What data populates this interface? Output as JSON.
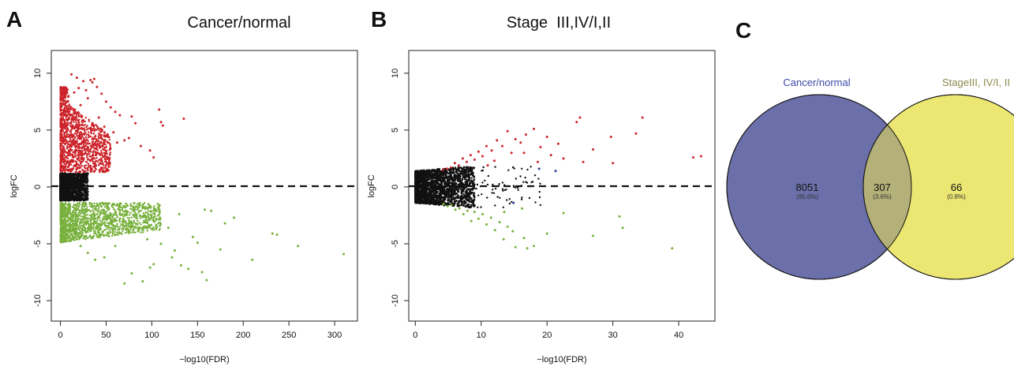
{
  "panels": {
    "a": {
      "letter": "A",
      "title": "Cancer/normal"
    },
    "b": {
      "letter": "B",
      "title": "Stage  III,IV/I,II"
    },
    "c": {
      "letter": "C"
    }
  },
  "colors": {
    "up": "#cc2229",
    "down": "#77b03b",
    "ns": "#111111",
    "extra_blue": "#2a3f9b",
    "venn_left": "#6b70aa",
    "venn_right": "#ece672",
    "venn_overlap": "#b3b079",
    "venn_left_label": "#3b4aa6",
    "venn_right_label": "#8a8a4c"
  },
  "chart_data": [
    {
      "type": "scatter",
      "title": "Cancer/normal",
      "xlabel": "−log10(FDR)",
      "ylabel": "logFC",
      "xlim": [
        -10,
        325
      ],
      "ylim": [
        -11.8,
        12
      ],
      "xticks": [
        "0",
        "50",
        "100",
        "150",
        "200",
        "250",
        "300"
      ],
      "xtick_values": [
        0,
        50,
        100,
        150,
        200,
        250,
        300
      ],
      "yticks": [
        "-10",
        "-5",
        "0",
        "5",
        "10"
      ],
      "ytick_values": [
        -10,
        -5,
        0,
        5,
        10
      ],
      "threshold_line_y": 0,
      "grid": false,
      "series": [
        {
          "color": "up",
          "values": [
            [
              12,
              9.9
            ],
            [
              18,
              9.6
            ],
            [
              25,
              9.3
            ],
            [
              33,
              9.4
            ],
            [
              37,
              9.5
            ],
            [
              40,
              8.8
            ],
            [
              35,
              9.2
            ],
            [
              20,
              8.7
            ],
            [
              28,
              8.5
            ],
            [
              45,
              8.2
            ],
            [
              50,
              7.5
            ],
            [
              55,
              7.0
            ],
            [
              65,
              6.3
            ],
            [
              78,
              6.2
            ],
            [
              60,
              6.6
            ],
            [
              108,
              6.8
            ],
            [
              110,
              5.7
            ],
            [
              112,
              5.4
            ],
            [
              135,
              6.0
            ],
            [
              82,
              5.6
            ],
            [
              98,
              3.2
            ],
            [
              102,
              2.6
            ],
            [
              70,
              4.1
            ],
            [
              58,
              4.8
            ],
            [
              48,
              5.3
            ],
            [
              42,
              6.1
            ],
            [
              75,
              4.3
            ],
            [
              88,
              3.6
            ],
            [
              62,
              3.9
            ],
            [
              52,
              4.4
            ],
            [
              30,
              7.8
            ],
            [
              22,
              7.2
            ],
            [
              15,
              8.3
            ],
            [
              8,
              7.5
            ],
            [
              8,
              3.0
            ],
            [
              8,
              5.0
            ],
            [
              9,
              6.0
            ],
            [
              10,
              4.0
            ],
            [
              10,
              2.0
            ]
          ]
        },
        {
          "color": "down",
          "values": [
            [
              70,
              -8.5
            ],
            [
              90,
              -8.3
            ],
            [
              78,
              -7.6
            ],
            [
              98,
              -7.1
            ],
            [
              102,
              -6.8
            ],
            [
              140,
              -7.2
            ],
            [
              160,
              -8.2
            ],
            [
              155,
              -7.5
            ],
            [
              132,
              -6.9
            ],
            [
              122,
              -6.2
            ],
            [
              210,
              -6.4
            ],
            [
              260,
              -5.2
            ],
            [
              310,
              -5.9
            ],
            [
              232,
              -4.1
            ],
            [
              237,
              -4.2
            ],
            [
              190,
              -2.7
            ],
            [
              165,
              -2.1
            ],
            [
              158,
              -2.0
            ],
            [
              130,
              -2.4
            ],
            [
              118,
              -3.6
            ],
            [
              145,
              -4.4
            ],
            [
              175,
              -5.5
            ],
            [
              110,
              -5.0
            ],
            [
              95,
              -4.6
            ],
            [
              85,
              -3.9
            ],
            [
              60,
              -5.2
            ],
            [
              48,
              -6.2
            ],
            [
              38,
              -6.4
            ],
            [
              30,
              -5.8
            ],
            [
              22,
              -5.2
            ],
            [
              105,
              -2.8
            ],
            [
              125,
              -5.6
            ],
            [
              150,
              -4.9
            ],
            [
              180,
              -3.2
            ],
            [
              68,
              -3.3
            ],
            [
              52,
              -4.0
            ],
            [
              40,
              -3.5
            ],
            [
              28,
              -4.4
            ],
            [
              17,
              -3.7
            ],
            [
              12,
              -4.2
            ],
            [
              8,
              -2.0
            ],
            [
              8,
              -3.0
            ],
            [
              9,
              -1.8
            ]
          ]
        }
      ]
    },
    {
      "type": "scatter",
      "title": "Stage  III,IV/I,II",
      "xlabel": "−log10(FDR)",
      "ylabel": "logFC",
      "xlim": [
        -1,
        45.5
      ],
      "ylim": [
        -11.8,
        12
      ],
      "xticks": [
        "0",
        "10",
        "20",
        "30",
        "40"
      ],
      "xtick_values": [
        0,
        10,
        20,
        30,
        40
      ],
      "yticks": [
        "-10",
        "-5",
        "0",
        "5",
        "10"
      ],
      "ytick_values": [
        -10,
        -5,
        0,
        5,
        10
      ],
      "threshold_line_y": 0,
      "grid": false,
      "series": [
        {
          "color": "up",
          "values": [
            [
              34.5,
              6.1
            ],
            [
              25.0,
              6.1
            ],
            [
              24.5,
              5.7
            ],
            [
              42.2,
              2.6
            ],
            [
              43.4,
              2.7
            ],
            [
              33.5,
              4.7
            ],
            [
              29.7,
              4.4
            ],
            [
              30.0,
              2.1
            ],
            [
              27.0,
              3.3
            ],
            [
              25.5,
              2.2
            ],
            [
              22.5,
              2.5
            ],
            [
              21.7,
              3.8
            ],
            [
              20.0,
              4.4
            ],
            [
              19.0,
              3.5
            ],
            [
              18.0,
              5.1
            ],
            [
              16.8,
              4.6
            ],
            [
              16.0,
              3.9
            ],
            [
              15.2,
              4.2
            ],
            [
              14.6,
              3.0
            ],
            [
              14.0,
              4.9
            ],
            [
              13.2,
              3.6
            ],
            [
              12.4,
              4.1
            ],
            [
              11.6,
              3.2
            ],
            [
              10.8,
              3.6
            ],
            [
              10.2,
              2.7
            ],
            [
              9.6,
              3.1
            ],
            [
              9.0,
              2.4
            ],
            [
              8.4,
              2.8
            ],
            [
              7.8,
              2.2
            ],
            [
              7.2,
              2.5
            ],
            [
              6.6,
              1.9
            ],
            [
              6.0,
              2.1
            ],
            [
              5.4,
              1.7
            ],
            [
              4.8,
              1.6
            ],
            [
              4.2,
              1.5
            ],
            [
              20.6,
              2.8
            ],
            [
              18.6,
              2.2
            ],
            [
              12.0,
              2.3
            ],
            [
              11.0,
              1.9
            ],
            [
              16.5,
              3.0
            ]
          ]
        },
        {
          "color": "down",
          "values": [
            [
              39.0,
              -5.4
            ],
            [
              31.5,
              -3.6
            ],
            [
              31.0,
              -2.6
            ],
            [
              27.0,
              -4.3
            ],
            [
              22.5,
              -2.3
            ],
            [
              20.0,
              -4.1
            ],
            [
              18.0,
              -5.2
            ],
            [
              17.0,
              -5.4
            ],
            [
              16.5,
              -4.5
            ],
            [
              16.2,
              -1.9
            ],
            [
              15.2,
              -5.3
            ],
            [
              14.8,
              -3.9
            ],
            [
              14.0,
              -3.5
            ],
            [
              13.4,
              -4.6
            ],
            [
              12.8,
              -3.1
            ],
            [
              12.1,
              -3.8
            ],
            [
              11.5,
              -2.7
            ],
            [
              10.8,
              -3.3
            ],
            [
              10.2,
              -2.4
            ],
            [
              9.6,
              -2.8
            ],
            [
              9.0,
              -2.2
            ],
            [
              8.5,
              -3.0
            ],
            [
              7.9,
              -2.1
            ],
            [
              7.3,
              -2.4
            ],
            [
              6.7,
              -1.9
            ],
            [
              6.1,
              -2.0
            ],
            [
              5.5,
              -1.6
            ],
            [
              4.9,
              -1.7
            ],
            [
              4.3,
              -1.5
            ],
            [
              13.5,
              -2.2
            ]
          ]
        },
        {
          "color": "extra_blue",
          "values": [
            [
              21.3,
              1.4
            ],
            [
              18.8,
              1.6
            ],
            [
              14.9,
              -1.4
            ]
          ]
        }
      ]
    },
    {
      "type": "venn",
      "sets": [
        {
          "name": "Cancer/normal",
          "only": 8051,
          "only_pct": "(95.6%)"
        },
        {
          "name": "StageIII, IV/I, II",
          "only": 66,
          "only_pct": "(0.8%)"
        }
      ],
      "intersection": {
        "value": 307,
        "pct": "(3.6%)"
      }
    }
  ]
}
